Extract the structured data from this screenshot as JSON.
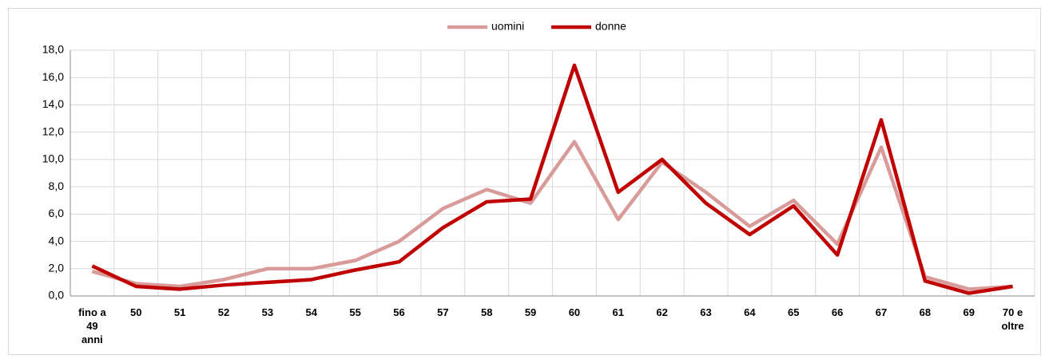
{
  "chart_data": {
    "type": "line",
    "categories": [
      "fino a 49 anni",
      "50",
      "51",
      "52",
      "53",
      "54",
      "55",
      "56",
      "57",
      "58",
      "59",
      "60",
      "61",
      "62",
      "63",
      "64",
      "65",
      "66",
      "67",
      "68",
      "69",
      "70 e oltre"
    ],
    "series": [
      {
        "name": "uomini",
        "color": "#d99a9a",
        "values": [
          1.8,
          0.9,
          0.7,
          1.2,
          2.0,
          2.0,
          2.6,
          4.0,
          6.4,
          7.8,
          6.8,
          11.3,
          5.6,
          9.8,
          7.6,
          5.1,
          7.0,
          3.8,
          10.9,
          1.4,
          0.5,
          0.7
        ]
      },
      {
        "name": "donne",
        "color": "#c00000",
        "values": [
          2.2,
          0.7,
          0.5,
          0.8,
          1.0,
          1.2,
          1.9,
          2.5,
          5.0,
          6.9,
          7.1,
          16.9,
          7.6,
          10.0,
          6.8,
          4.5,
          6.6,
          3.0,
          12.9,
          1.1,
          0.2,
          0.7
        ]
      }
    ],
    "ylim": [
      0,
      18
    ],
    "yticks": [
      {
        "value": 0,
        "label": "0,0"
      },
      {
        "value": 2,
        "label": "2,0"
      },
      {
        "value": 4,
        "label": "4,0"
      },
      {
        "value": 6,
        "label": "6,0"
      },
      {
        "value": 8,
        "label": "8,0"
      },
      {
        "value": 10,
        "label": "10,0"
      },
      {
        "value": 12,
        "label": "12,0"
      },
      {
        "value": 14,
        "label": "14,0"
      },
      {
        "value": 16,
        "label": "16,0"
      },
      {
        "value": 18,
        "label": "18,0"
      }
    ],
    "grid": true,
    "legend": "top"
  }
}
